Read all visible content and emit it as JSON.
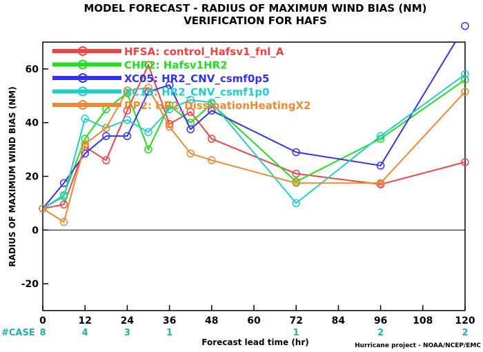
{
  "chart_data": {
    "type": "line",
    "title": "MODEL FORECAST - RADIUS OF MAXIMUM WIND BIAS (NM)",
    "subtitle": "VERIFICATION FOR HAFS",
    "xlabel": "Forecast lead time (hr)",
    "ylabel": "RADIUS OF MAXIMUM WIND BIAS (NM)",
    "xlim": [
      0,
      120
    ],
    "ylim": [
      -30,
      70
    ],
    "xticks": [
      "0",
      "12",
      "24",
      "36",
      "48",
      "60",
      "72",
      "84",
      "96",
      "108",
      "120"
    ],
    "yticks": [
      "-20",
      "0",
      "20",
      "40",
      "60"
    ],
    "x": [
      0,
      6,
      12,
      18,
      24,
      30,
      36,
      42,
      48,
      72,
      96,
      120
    ],
    "series": [
      {
        "name": "HFSA: control_Hafsv1_fnl_A",
        "color": "#ee4444",
        "values": [
          8,
          9.5,
          31,
          26,
          44.5,
          61.5,
          39.5,
          44,
          34,
          21,
          17,
          25.3
        ]
      },
      {
        "name": "CHR2: Hafsv1HR2",
        "color": "#22dd22",
        "values": [
          8,
          13,
          34,
          45,
          51,
          30,
          46.5,
          40,
          47,
          18,
          34,
          56
        ]
      },
      {
        "name": "XC05: HR2_CNV_csmf0p5",
        "color": "#3333ee",
        "values": [
          8,
          17.5,
          28.5,
          35,
          35,
          51.5,
          54,
          37.5,
          44.5,
          29,
          24,
          76
        ]
      },
      {
        "name": "XC10: HR2_CNV_csmf1p0",
        "color": "#22cccc",
        "values": [
          8,
          12.5,
          41.5,
          38,
          41,
          36.5,
          45,
          48.5,
          47.5,
          10,
          35,
          58
        ]
      },
      {
        "name": "DP2: HR2_DissipationHeatingX2",
        "color": "#ee8833",
        "values": [
          8,
          3,
          32,
          38,
          52,
          53,
          38.5,
          28.5,
          26,
          17.5,
          17.5,
          51.5
        ]
      }
    ],
    "case_label": "#CASE",
    "cases": [
      {
        "x": 0,
        "n": "8"
      },
      {
        "x": 12,
        "n": "4"
      },
      {
        "x": 24,
        "n": "3"
      },
      {
        "x": 36,
        "n": "1"
      },
      {
        "x": 72,
        "n": "1"
      },
      {
        "x": 96,
        "n": "2"
      },
      {
        "x": 120,
        "n": "2"
      }
    ],
    "credit": "Hurricane project - NOAA/NCEP/EMC",
    "legend_position": "top-left",
    "grid": false,
    "zero_line": true
  }
}
